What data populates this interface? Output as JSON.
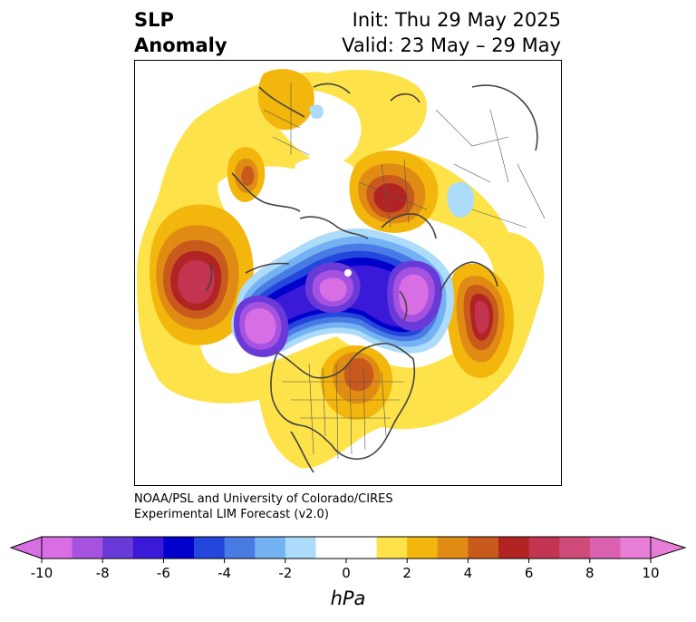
{
  "title": {
    "left_line1": "SLP",
    "left_line2": "Anomaly",
    "right_line1": "Init: Thu 29 May 2025",
    "right_line2": "Valid: 23 May – 29 May"
  },
  "credit": {
    "line1": "NOAA/PSL and University of Colorado/CIRES",
    "line2": "Experimental LIM Forecast (v2.0)"
  },
  "colorbar": {
    "unit": "hPa",
    "ticks": [
      "-10",
      "-8",
      "-6",
      "-4",
      "-2",
      "0",
      "2",
      "4",
      "6",
      "8",
      "10"
    ],
    "neg_extend_color": "#d86ee4",
    "pos_extend_color": "#e87ed8",
    "colors": [
      "#d86ee4",
      "#a552e0",
      "#6a3ad8",
      "#3a1ad8",
      "#0000cc",
      "#2346dc",
      "#4a7ae4",
      "#74b2f2",
      "#acdcfa",
      "#ffffff",
      "#ffffff",
      "#fde24a",
      "#f3b60c",
      "#e08c14",
      "#c85a1c",
      "#b22424",
      "#c23450",
      "#cf4a78",
      "#da60b0",
      "#e87ed8"
    ]
  },
  "map": {
    "projection": "north-polar-stereographic",
    "field": "SLP anomaly",
    "features": [
      {
        "name": "negative-anomaly-arctic",
        "value": -10
      },
      {
        "name": "negative-anomaly-bering",
        "value": -10
      },
      {
        "name": "negative-anomaly-siberia",
        "value": -10
      },
      {
        "name": "positive-anomaly-north-pacific",
        "value": 7
      },
      {
        "name": "positive-anomaly-north-atlantic",
        "value": 7
      },
      {
        "name": "positive-anomaly-europe",
        "value": 6
      },
      {
        "name": "positive-anomaly-hudson-bay",
        "value": 5
      },
      {
        "name": "positive-anomaly-east-asia",
        "value": 4
      }
    ]
  }
}
